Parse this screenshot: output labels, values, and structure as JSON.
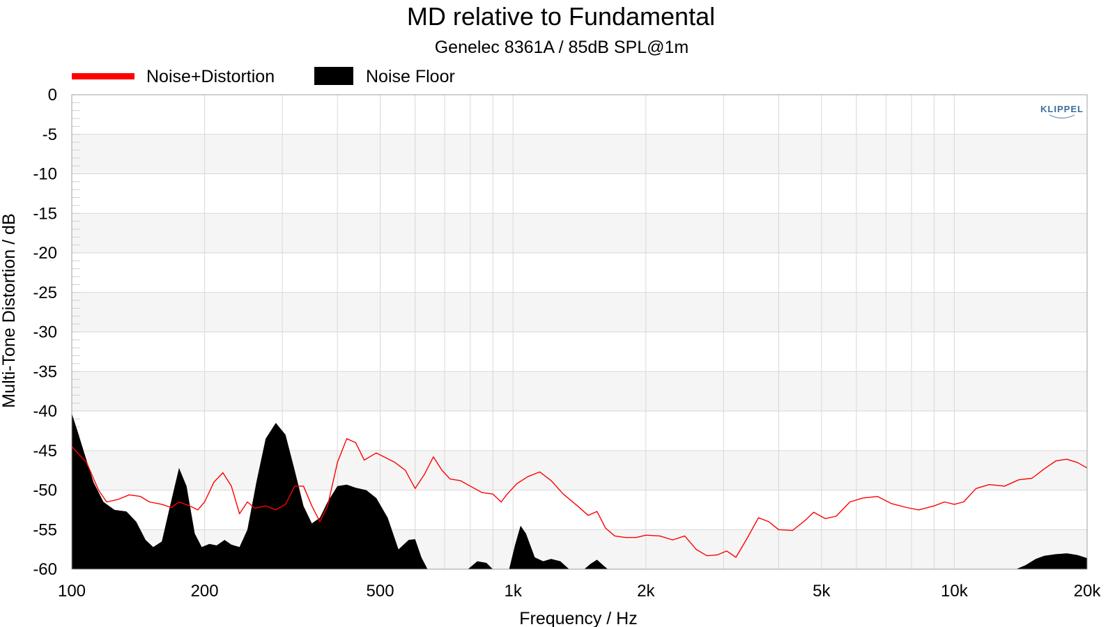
{
  "chart_data": {
    "type": "area",
    "title": "MD relative to Fundamental",
    "subtitle": "Genelec 8361A / 85dB SPL@1m",
    "xlabel": "Frequency / Hz",
    "ylabel": "Multi-Tone Distortion / dB",
    "x_scale": "log",
    "xlim": [
      100,
      20000
    ],
    "ylim": [
      -60,
      0
    ],
    "x_ticks": [
      {
        "value": 100,
        "label": "100"
      },
      {
        "value": 200,
        "label": "200"
      },
      {
        "value": 500,
        "label": "500"
      },
      {
        "value": 1000,
        "label": "1k"
      },
      {
        "value": 2000,
        "label": "2k"
      },
      {
        "value": 5000,
        "label": "5k"
      },
      {
        "value": 10000,
        "label": "10k"
      },
      {
        "value": 20000,
        "label": "20k"
      }
    ],
    "y_ticks": [
      0,
      -5,
      -10,
      -15,
      -20,
      -25,
      -30,
      -35,
      -40,
      -45,
      -50,
      -55,
      -60
    ],
    "grid": true,
    "legend_position": "top-left",
    "logo_text": "KLIPPEL",
    "series": [
      {
        "name": "Noise+Distortion",
        "style": "line",
        "color": "#ff0000",
        "points": [
          [
            100,
            -44.5
          ],
          [
            108,
            -46.5
          ],
          [
            115,
            -50
          ],
          [
            120,
            -51.5
          ],
          [
            127,
            -51.2
          ],
          [
            135,
            -50.6
          ],
          [
            143,
            -50.8
          ],
          [
            150,
            -51.5
          ],
          [
            160,
            -51.8
          ],
          [
            168,
            -52.2
          ],
          [
            175,
            -51.5
          ],
          [
            185,
            -52
          ],
          [
            193,
            -52.5
          ],
          [
            200,
            -51.5
          ],
          [
            210,
            -49
          ],
          [
            220,
            -47.8
          ],
          [
            230,
            -49.5
          ],
          [
            240,
            -53
          ],
          [
            250,
            -51.5
          ],
          [
            260,
            -52.3
          ],
          [
            275,
            -52
          ],
          [
            290,
            -52.5
          ],
          [
            305,
            -51.8
          ],
          [
            320,
            -49.5
          ],
          [
            335,
            -49.5
          ],
          [
            350,
            -52
          ],
          [
            365,
            -54
          ],
          [
            380,
            -52
          ],
          [
            400,
            -46.5
          ],
          [
            420,
            -43.5
          ],
          [
            440,
            -44
          ],
          [
            460,
            -46.2
          ],
          [
            490,
            -45.3
          ],
          [
            510,
            -45.8
          ],
          [
            540,
            -46.5
          ],
          [
            570,
            -47.5
          ],
          [
            600,
            -49.8
          ],
          [
            630,
            -48
          ],
          [
            660,
            -45.8
          ],
          [
            690,
            -47.5
          ],
          [
            720,
            -48.6
          ],
          [
            760,
            -48.8
          ],
          [
            800,
            -49.5
          ],
          [
            850,
            -50.3
          ],
          [
            900,
            -50.5
          ],
          [
            940,
            -51.5
          ],
          [
            970,
            -50.5
          ],
          [
            1020,
            -49.2
          ],
          [
            1080,
            -48.3
          ],
          [
            1150,
            -47.7
          ],
          [
            1220,
            -48.8
          ],
          [
            1300,
            -50.5
          ],
          [
            1400,
            -52
          ],
          [
            1480,
            -53.2
          ],
          [
            1550,
            -52.7
          ],
          [
            1620,
            -54.8
          ],
          [
            1700,
            -55.8
          ],
          [
            1800,
            -56
          ],
          [
            1900,
            -56
          ],
          [
            2000,
            -55.7
          ],
          [
            2150,
            -55.8
          ],
          [
            2300,
            -56.3
          ],
          [
            2450,
            -55.8
          ],
          [
            2600,
            -57.5
          ],
          [
            2750,
            -58.3
          ],
          [
            2900,
            -58.2
          ],
          [
            3050,
            -57.7
          ],
          [
            3200,
            -58.5
          ],
          [
            3400,
            -56
          ],
          [
            3600,
            -53.5
          ],
          [
            3800,
            -54
          ],
          [
            4000,
            -55
          ],
          [
            4300,
            -55.1
          ],
          [
            4600,
            -53.8
          ],
          [
            4800,
            -52.8
          ],
          [
            5100,
            -53.6
          ],
          [
            5400,
            -53.3
          ],
          [
            5800,
            -51.5
          ],
          [
            6200,
            -51
          ],
          [
            6700,
            -50.8
          ],
          [
            7200,
            -51.7
          ],
          [
            7800,
            -52.2
          ],
          [
            8300,
            -52.5
          ],
          [
            9000,
            -52
          ],
          [
            9500,
            -51.5
          ],
          [
            10000,
            -51.8
          ],
          [
            10500,
            -51.5
          ],
          [
            11200,
            -49.8
          ],
          [
            12000,
            -49.3
          ],
          [
            13000,
            -49.5
          ],
          [
            14000,
            -48.7
          ],
          [
            15000,
            -48.5
          ],
          [
            16000,
            -47.3
          ],
          [
            17000,
            -46.3
          ],
          [
            18000,
            -46.1
          ],
          [
            19000,
            -46.5
          ],
          [
            20000,
            -47.2
          ]
        ]
      },
      {
        "name": "Noise Floor",
        "style": "area",
        "color": "#000000",
        "points": [
          [
            100,
            -40.3
          ],
          [
            103,
            -42.5
          ],
          [
            107,
            -45.5
          ],
          [
            112,
            -49
          ],
          [
            118,
            -51.5
          ],
          [
            125,
            -52.5
          ],
          [
            133,
            -52.7
          ],
          [
            140,
            -54
          ],
          [
            147,
            -56.3
          ],
          [
            153,
            -57.2
          ],
          [
            160,
            -56.5
          ],
          [
            167,
            -52
          ],
          [
            175,
            -47.2
          ],
          [
            182,
            -49.5
          ],
          [
            190,
            -55.5
          ],
          [
            197,
            -57.2
          ],
          [
            205,
            -56.8
          ],
          [
            213,
            -57
          ],
          [
            222,
            -56.3
          ],
          [
            230,
            -56.9
          ],
          [
            240,
            -57.2
          ],
          [
            250,
            -55
          ],
          [
            262,
            -49
          ],
          [
            275,
            -43.5
          ],
          [
            290,
            -41.5
          ],
          [
            305,
            -43
          ],
          [
            320,
            -47.5
          ],
          [
            335,
            -52
          ],
          [
            350,
            -54.2
          ],
          [
            365,
            -53.5
          ],
          [
            380,
            -51.5
          ],
          [
            400,
            -49.5
          ],
          [
            420,
            -49.3
          ],
          [
            440,
            -49.7
          ],
          [
            465,
            -50
          ],
          [
            490,
            -51
          ],
          [
            520,
            -53.5
          ],
          [
            550,
            -57.5
          ],
          [
            580,
            -56.3
          ],
          [
            600,
            -56.2
          ],
          [
            620,
            -58.5
          ],
          [
            640,
            -60
          ],
          [
            790,
            -60
          ],
          [
            830,
            -59
          ],
          [
            870,
            -59.2
          ],
          [
            900,
            -60
          ],
          [
            980,
            -60
          ],
          [
            1010,
            -57
          ],
          [
            1040,
            -54.5
          ],
          [
            1070,
            -55.5
          ],
          [
            1120,
            -58.5
          ],
          [
            1170,
            -59
          ],
          [
            1220,
            -58.7
          ],
          [
            1280,
            -59
          ],
          [
            1340,
            -60
          ],
          [
            1450,
            -60
          ],
          [
            1500,
            -59.3
          ],
          [
            1550,
            -58.8
          ],
          [
            1600,
            -59.5
          ],
          [
            1640,
            -60
          ],
          [
            13800,
            -60
          ],
          [
            14500,
            -59.5
          ],
          [
            15300,
            -58.7
          ],
          [
            16000,
            -58.3
          ],
          [
            17000,
            -58.1
          ],
          [
            18000,
            -58
          ],
          [
            19000,
            -58.2
          ],
          [
            20000,
            -58.6
          ],
          [
            20000,
            -60
          ]
        ]
      }
    ]
  }
}
